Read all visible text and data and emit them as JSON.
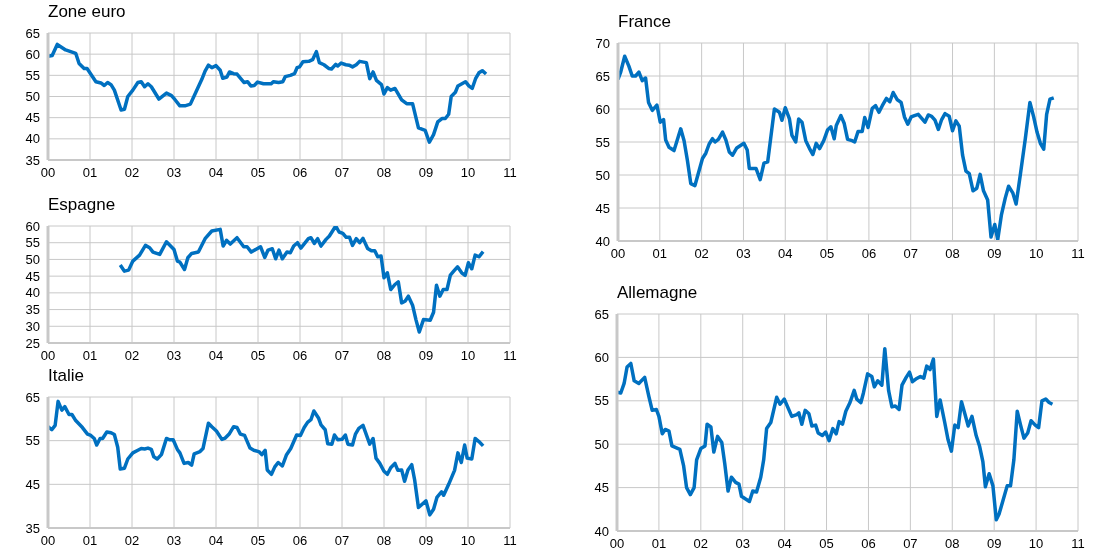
{
  "chart_data": [
    {
      "type": "line",
      "title": "Zone euro",
      "color": "#0070c0",
      "grid": true,
      "xlim": [
        2000,
        2011
      ],
      "ylim": [
        35,
        65
      ],
      "yticks": [
        35,
        40,
        45,
        50,
        55,
        60,
        65
      ],
      "xticks": [
        {
          "value": 2000,
          "label": "00"
        },
        {
          "value": 2001,
          "label": "01"
        },
        {
          "value": 2002,
          "label": "02"
        },
        {
          "value": 2003,
          "label": "03"
        },
        {
          "value": 2004,
          "label": "04"
        },
        {
          "value": 2005,
          "label": "05"
        },
        {
          "value": 2006,
          "label": "06"
        },
        {
          "value": 2007,
          "label": "07"
        },
        {
          "value": 2008,
          "label": "08"
        },
        {
          "value": 2009,
          "label": "09"
        },
        {
          "value": 2010,
          "label": "10"
        },
        {
          "value": 2011,
          "label": "11"
        }
      ],
      "x": [
        2000,
        2000.1,
        2000.22,
        2000.42,
        2000.54,
        2000.66,
        2000.74,
        2000.86,
        2000.93,
        2001.14,
        2001.26,
        2001.34,
        2001.42,
        2001.5,
        2001.58,
        2001.74,
        2001.82,
        2001.9,
        2002.02,
        2002.14,
        2002.22,
        2002.3,
        2002.38,
        2002.46,
        2002.64,
        2002.82,
        2002.94,
        2003.02,
        2003.14,
        2003.26,
        2003.39,
        2003.52,
        2003.66,
        2003.74,
        2003.82,
        2003.9,
        2004,
        2004.1,
        2004.16,
        2004.26,
        2004.32,
        2004.42,
        2004.5,
        2004.67,
        2004.75,
        2004.83,
        2004.91,
        2004.99,
        2005.13,
        2005.21,
        2005.31,
        2005.37,
        2005.49,
        2005.59,
        2005.65,
        2005.77,
        2005.87,
        2005.93,
        2005.99,
        2006.07,
        2006.21,
        2006.3,
        2006.39,
        2006.46,
        2006.57,
        2006.69,
        2006.75,
        2006.85,
        2006.9,
        2006.98,
        2007.09,
        2007.17,
        2007.25,
        2007.34,
        2007.42,
        2007.58,
        2007.66,
        2007.74,
        2007.82,
        2007.94,
        2008,
        2008.08,
        2008.16,
        2008.26,
        2008.42,
        2008.54,
        2008.68,
        2008.82,
        2008.98,
        2009.08,
        2009.18,
        2009.28,
        2009.38,
        2009.46,
        2009.54,
        2009.6,
        2009.7,
        2009.76,
        2009.94,
        2010.02,
        2010.1,
        2010.18,
        2010.26,
        2010.34,
        2010.43
      ],
      "values": [
        59.5,
        59.7,
        62.3,
        61,
        60.6,
        60.2,
        57.8,
        56.6,
        56.6,
        53.5,
        53.2,
        52.6,
        53.3,
        52.8,
        51.5,
        46.8,
        47,
        50,
        51.5,
        53.3,
        53.5,
        52.3,
        53,
        52.3,
        49.4,
        50.8,
        50.2,
        49.3,
        47.8,
        47.8,
        48.2,
        51,
        54,
        56,
        57.4,
        56.8,
        57.3,
        56.2,
        54.3,
        54.6,
        55.8,
        55.4,
        55.3,
        53.3,
        53.5,
        52.5,
        52.6,
        53.4,
        53,
        53,
        53,
        53.5,
        53.3,
        53.5,
        54.7,
        55,
        55.4,
        56.8,
        57,
        58.2,
        58.3,
        58.7,
        60.6,
        58,
        57.5,
        56.6,
        56.5,
        57.6,
        57.2,
        57.9,
        57.5,
        57.4,
        57,
        57.5,
        58.3,
        58,
        54.2,
        55.8,
        53.8,
        52.8,
        50.6,
        52.1,
        51.5,
        51.9,
        49.2,
        48.3,
        48.3,
        42.6,
        42,
        39.2,
        41,
        44,
        44.8,
        44.8,
        45.8,
        50,
        51,
        52.5,
        53.5,
        52.5,
        51.9,
        54.2,
        55.6,
        56.1,
        55.3
      ]
    },
    {
      "type": "line",
      "title": "France",
      "color": "#0070c0",
      "grid": true,
      "xlim": [
        2000,
        2011
      ],
      "ylim": [
        40,
        70
      ],
      "yticks": [
        40,
        45,
        50,
        55,
        60,
        65,
        70
      ],
      "xticks": [
        {
          "value": 2000,
          "label": "00"
        },
        {
          "value": 2001,
          "label": "01"
        },
        {
          "value": 2002,
          "label": "02"
        },
        {
          "value": 2003,
          "label": "03"
        },
        {
          "value": 2004,
          "label": "04"
        },
        {
          "value": 2005,
          "label": "05"
        },
        {
          "value": 2006,
          "label": "06"
        },
        {
          "value": 2007,
          "label": "07"
        },
        {
          "value": 2008,
          "label": "08"
        },
        {
          "value": 2009,
          "label": "09"
        },
        {
          "value": 2010,
          "label": "10"
        },
        {
          "value": 2011,
          "label": "11"
        }
      ],
      "x": [
        2000,
        2000.06,
        2000.16,
        2000.26,
        2000.34,
        2000.42,
        2000.5,
        2000.58,
        2000.66,
        2000.73,
        2000.82,
        2000.93,
        2001.01,
        2001.09,
        2001.14,
        2001.22,
        2001.34,
        2001.5,
        2001.58,
        2001.66,
        2001.74,
        2001.84,
        2002.02,
        2002.1,
        2002.18,
        2002.26,
        2002.32,
        2002.4,
        2002.5,
        2002.58,
        2002.66,
        2002.74,
        2002.84,
        2003.01,
        2003.09,
        2003.14,
        2003.3,
        2003.4,
        2003.49,
        2003.58,
        2003.74,
        2003.86,
        2003.92,
        2004,
        2004.1,
        2004.16,
        2004.25,
        2004.32,
        2004.4,
        2004.49,
        2004.58,
        2004.66,
        2004.74,
        2004.82,
        2004.92,
        2005.01,
        2005.09,
        2005.17,
        2005.22,
        2005.33,
        2005.41,
        2005.49,
        2005.6,
        2005.66,
        2005.74,
        2005.84,
        2005.9,
        2005.98,
        2006.08,
        2006.16,
        2006.24,
        2006.32,
        2006.42,
        2006.5,
        2006.58,
        2006.68,
        2006.77,
        2006.85,
        2006.93,
        2007.01,
        2007.09,
        2007.18,
        2007.34,
        2007.42,
        2007.5,
        2007.58,
        2007.66,
        2007.74,
        2007.82,
        2007.92,
        2008,
        2008.08,
        2008.16,
        2008.24,
        2008.32,
        2008.4,
        2008.49,
        2008.58,
        2008.66,
        2008.74,
        2008.84,
        2008.92,
        2009.01,
        2009.08,
        2009.17,
        2009.26,
        2009.34,
        2009.44,
        2009.52,
        2009.62,
        2009.74,
        2009.85,
        2009.94,
        2010.02,
        2010.1,
        2010.18,
        2010.25,
        2010.33,
        2010.42
      ],
      "values": [
        64.5,
        65.5,
        68,
        66.5,
        65,
        65,
        65.6,
        64.3,
        64.7,
        61,
        59.8,
        60.6,
        58,
        58.4,
        55.3,
        54.2,
        53.7,
        57,
        55.2,
        52.2,
        48.7,
        48.4,
        52.5,
        53.3,
        54.7,
        55.5,
        55,
        55.4,
        56.5,
        55.3,
        53.5,
        53,
        54.1,
        54.8,
        53.8,
        51,
        51,
        49.3,
        51.8,
        52,
        60,
        59.5,
        58.3,
        60.2,
        58.5,
        56,
        55,
        58.5,
        58,
        55.2,
        54,
        53.1,
        54.8,
        54,
        55.2,
        56.8,
        57.3,
        55.5,
        57.5,
        59,
        57.8,
        55.4,
        55.2,
        55,
        56.6,
        56.6,
        58.7,
        57.2,
        60.1,
        60.5,
        59.5,
        60.5,
        61.6,
        61.1,
        62.5,
        61.4,
        61,
        58.8,
        57.7,
        58.8,
        59,
        59.2,
        58,
        59.1,
        58.9,
        58.3,
        56.9,
        58.4,
        59.3,
        58.9,
        56.7,
        58.2,
        57.4,
        53,
        50.6,
        50.2,
        47.6,
        48,
        50.1,
        47.6,
        46.2,
        40.6,
        42.5,
        40.2,
        44,
        46.5,
        48.3,
        47.3,
        45.6,
        50,
        55.5,
        61,
        58.8,
        56.5,
        54.8,
        53.9,
        59.2,
        61.5,
        61.7
      ]
    },
    {
      "type": "line",
      "title": "Espagne",
      "color": "#0070c0",
      "grid": true,
      "xlim": [
        2000,
        2011
      ],
      "ylim": [
        25,
        60
      ],
      "yticks": [
        25,
        30,
        35,
        40,
        45,
        50,
        55,
        60
      ],
      "xticks": [
        {
          "value": 2000,
          "label": "00"
        },
        {
          "value": 2001,
          "label": "01"
        },
        {
          "value": 2002,
          "label": "02"
        },
        {
          "value": 2003,
          "label": "03"
        },
        {
          "value": 2004,
          "label": "04"
        },
        {
          "value": 2005,
          "label": "05"
        },
        {
          "value": 2006,
          "label": "06"
        },
        {
          "value": 2007,
          "label": "07"
        },
        {
          "value": 2008,
          "label": "08"
        },
        {
          "value": 2009,
          "label": "09"
        },
        {
          "value": 2010,
          "label": "10"
        },
        {
          "value": 2011,
          "label": "11"
        }
      ],
      "x": [
        2001.72,
        2001.82,
        2001.92,
        2002.02,
        2002.18,
        2002.32,
        2002.42,
        2002.5,
        2002.66,
        2002.82,
        2003,
        2003.08,
        2003.14,
        2003.25,
        2003.33,
        2003.42,
        2003.58,
        2003.74,
        2003.9,
        2004.1,
        2004.17,
        2004.25,
        2004.34,
        2004.5,
        2004.66,
        2004.74,
        2004.84,
        2005.06,
        2005.16,
        2005.24,
        2005.34,
        2005.42,
        2005.5,
        2005.58,
        2005.69,
        2005.77,
        2005.85,
        2005.94,
        2006.02,
        2006.2,
        2006.26,
        2006.34,
        2006.42,
        2006.5,
        2006.62,
        2006.7,
        2006.85,
        2006.93,
        2007.02,
        2007.1,
        2007.18,
        2007.25,
        2007.34,
        2007.42,
        2007.5,
        2007.61,
        2007.7,
        2007.78,
        2007.85,
        2007.93,
        2008,
        2008.08,
        2008.16,
        2008.26,
        2008.34,
        2008.42,
        2008.5,
        2008.58,
        2008.68,
        2008.76,
        2008.84,
        2008.94,
        2009.1,
        2009.18,
        2009.25,
        2009.33,
        2009.41,
        2009.5,
        2009.58,
        2009.66,
        2009.75,
        2009.85,
        2009.93,
        2010.01,
        2010.09,
        2010.17,
        2010.26,
        2010.36
      ],
      "values": [
        48.3,
        46.5,
        46.8,
        49.5,
        51.3,
        54.2,
        53.5,
        52.2,
        51.5,
        55.3,
        53,
        49.5,
        49.2,
        47,
        50.5,
        51.8,
        52.2,
        56.2,
        58.5,
        59,
        54,
        55.7,
        54.6,
        56.5,
        53.8,
        53.8,
        52.2,
        53.8,
        50.6,
        52.8,
        53.2,
        50.2,
        52.8,
        50.2,
        52.2,
        52,
        54,
        55,
        53.4,
        56.2,
        56.5,
        54.8,
        56.2,
        54,
        56,
        57,
        60,
        58.2,
        57.8,
        56.6,
        56.6,
        54.2,
        56.2,
        55,
        56.3,
        53.3,
        52.6,
        52.6,
        50.8,
        51,
        44.5,
        46,
        41,
        42.5,
        43.3,
        37,
        37.5,
        39,
        36.3,
        32,
        28.3,
        32,
        31.8,
        34.2,
        42.3,
        39,
        41,
        41,
        45.3,
        46.5,
        47.8,
        46,
        45.2,
        49,
        47.2,
        51.3,
        50.8,
        52.3
      ]
    },
    {
      "type": "line",
      "title": "Allemagne",
      "color": "#0070c0",
      "grid": true,
      "xlim": [
        2000,
        2011
      ],
      "ylim": [
        40,
        65
      ],
      "yticks": [
        40,
        45,
        50,
        55,
        60,
        65
      ],
      "xticks": [
        {
          "value": 2000,
          "label": "00"
        },
        {
          "value": 2001,
          "label": "01"
        },
        {
          "value": 2002,
          "label": "02"
        },
        {
          "value": 2003,
          "label": "03"
        },
        {
          "value": 2004,
          "label": "04"
        },
        {
          "value": 2005,
          "label": "05"
        },
        {
          "value": 2006,
          "label": "06"
        },
        {
          "value": 2007,
          "label": "07"
        },
        {
          "value": 2008,
          "label": "08"
        },
        {
          "value": 2009,
          "label": "09"
        },
        {
          "value": 2010,
          "label": "10"
        },
        {
          "value": 2011,
          "label": "11"
        }
      ],
      "x": [
        2000,
        2000.09,
        2000.17,
        2000.24,
        2000.33,
        2000.41,
        2000.52,
        2000.66,
        2000.76,
        2000.84,
        2000.94,
        2001,
        2001.08,
        2001.15,
        2001.24,
        2001.31,
        2001.5,
        2001.59,
        2001.66,
        2001.75,
        2001.84,
        2001.9,
        2002,
        2002.1,
        2002.15,
        2002.24,
        2002.31,
        2002.4,
        2002.5,
        2002.57,
        2002.65,
        2002.73,
        2002.83,
        2002.91,
        2002.97,
        2003.16,
        2003.24,
        2003.33,
        2003.43,
        2003.5,
        2003.57,
        2003.67,
        2003.81,
        2003.89,
        2003.99,
        2004.17,
        2004.29,
        2004.34,
        2004.41,
        2004.49,
        2004.58,
        2004.65,
        2004.74,
        2004.8,
        2004.9,
        2004.98,
        2005.06,
        2005.15,
        2005.23,
        2005.3,
        2005.38,
        2005.46,
        2005.56,
        2005.66,
        2005.72,
        2005.82,
        2005.88,
        2005.98,
        2006.08,
        2006.14,
        2006.22,
        2006.32,
        2006.39,
        2006.48,
        2006.56,
        2006.64,
        2006.73,
        2006.8,
        2006.9,
        2006.98,
        2007.05,
        2007.13,
        2007.24,
        2007.32,
        2007.39,
        2007.47,
        2007.55,
        2007.63,
        2007.71,
        2007.82,
        2007.9,
        2007.98,
        2008.06,
        2008.14,
        2008.22,
        2008.3,
        2008.38,
        2008.47,
        2008.57,
        2008.65,
        2008.73,
        2008.79,
        2008.88,
        2008.97,
        2009.05,
        2009.12,
        2009.31,
        2009.39,
        2009.47,
        2009.55,
        2009.63,
        2009.71,
        2009.8,
        2009.88,
        2009.98,
        2010.06,
        2010.14,
        2010.23,
        2010.31,
        2010.39
      ],
      "values": [
        56,
        55.9,
        57,
        58.9,
        59.3,
        57.3,
        57,
        57.7,
        55.5,
        53.9,
        54,
        53.2,
        51.2,
        51.7,
        51.5,
        49.8,
        49.4,
        47.5,
        45,
        44.2,
        45,
        48.2,
        49.5,
        49.8,
        52.3,
        52,
        49.1,
        50.9,
        50.2,
        47.8,
        44.6,
        46.2,
        45.6,
        45.4,
        44,
        43.4,
        44.6,
        44.5,
        46.2,
        48.2,
        51.8,
        52.5,
        55.4,
        54.6,
        55.2,
        53.2,
        53.4,
        53.6,
        52.3,
        53.9,
        53.5,
        52.1,
        52.2,
        51.3,
        51,
        51.4,
        50.4,
        51.8,
        51.2,
        52.6,
        52.3,
        53.8,
        54.8,
        56.2,
        55.2,
        54.8,
        55.9,
        58.1,
        57.8,
        56.6,
        57.3,
        56.8,
        61,
        56.2,
        54.3,
        54.4,
        54,
        56.8,
        57.7,
        58.3,
        57.2,
        57.5,
        57.8,
        57.6,
        59,
        58.6,
        59.8,
        53.2,
        55.1,
        52.5,
        50.5,
        49.2,
        52.2,
        51.9,
        54.9,
        53.5,
        52.1,
        53.2,
        51,
        49.8,
        48,
        45.1,
        46.6,
        45.2,
        41.3,
        42,
        45.2,
        45.2,
        48.2,
        53.8,
        52.2,
        50.7,
        51.3,
        52.7,
        52.2,
        51.9,
        55,
        55.2,
        54.8,
        54.6
      ]
    },
    {
      "type": "line",
      "title": "Italie",
      "color": "#0070c0",
      "grid": true,
      "xlim": [
        2000,
        2011
      ],
      "ylim": [
        35,
        65
      ],
      "yticks": [
        35,
        45,
        55,
        65
      ],
      "xticks": [
        {
          "value": 2000,
          "label": "00"
        },
        {
          "value": 2001,
          "label": "01"
        },
        {
          "value": 2002,
          "label": "02"
        },
        {
          "value": 2003,
          "label": "03"
        },
        {
          "value": 2004,
          "label": "04"
        },
        {
          "value": 2005,
          "label": "05"
        },
        {
          "value": 2006,
          "label": "06"
        },
        {
          "value": 2007,
          "label": "07"
        },
        {
          "value": 2008,
          "label": "08"
        },
        {
          "value": 2009,
          "label": "09"
        },
        {
          "value": 2010,
          "label": "10"
        },
        {
          "value": 2011,
          "label": "11"
        }
      ],
      "x": [
        2000,
        2000.09,
        2000.17,
        2000.24,
        2000.33,
        2000.4,
        2000.5,
        2000.57,
        2000.66,
        2000.82,
        2000.94,
        2001.02,
        2001.1,
        2001.16,
        2001.24,
        2001.3,
        2001.4,
        2001.5,
        2001.58,
        2001.66,
        2001.72,
        2001.82,
        2001.9,
        2002.02,
        2002.14,
        2002.22,
        2002.3,
        2002.38,
        2002.46,
        2002.52,
        2002.6,
        2002.7,
        2002.82,
        2002.9,
        2002.98,
        2003.08,
        2003.14,
        2003.24,
        2003.34,
        2003.42,
        2003.48,
        2003.62,
        2003.69,
        2003.82,
        2003.9,
        2004.01,
        2004.14,
        2004.22,
        2004.32,
        2004.42,
        2004.5,
        2004.58,
        2004.68,
        2004.81,
        2004.9,
        2005.02,
        2005.09,
        2005.17,
        2005.22,
        2005.32,
        2005.4,
        2005.48,
        2005.58,
        2005.68,
        2005.78,
        2005.92,
        2006.01,
        2006.1,
        2006.18,
        2006.26,
        2006.33,
        2006.44,
        2006.5,
        2006.6,
        2006.66,
        2006.76,
        2006.82,
        2006.9,
        2007,
        2007.08,
        2007.14,
        2007.25,
        2007.32,
        2007.4,
        2007.5,
        2007.66,
        2007.74,
        2007.81,
        2007.9,
        2008,
        2008.08,
        2008.16,
        2008.26,
        2008.33,
        2008.42,
        2008.49,
        2008.57,
        2008.66,
        2008.73,
        2008.82,
        2009,
        2009.09,
        2009.18,
        2009.26,
        2009.37,
        2009.42,
        2009.54,
        2009.68,
        2009.76,
        2009.84,
        2009.92,
        2009.98,
        2010.09,
        2010.17,
        2010.26,
        2010.36
      ],
      "values": [
        58.2,
        57.5,
        58.5,
        64,
        62,
        62.8,
        61,
        61,
        59.6,
        58,
        56.5,
        56.2,
        55.5,
        54,
        55.5,
        55.5,
        57,
        56.8,
        56.4,
        53.5,
        48.5,
        48.7,
        50.8,
        52.2,
        52.8,
        53.2,
        53.1,
        53.3,
        53,
        51.3,
        50.8,
        51.8,
        55.5,
        55.2,
        55.2,
        53,
        52.2,
        49.8,
        50,
        49.4,
        52,
        52.5,
        53.2,
        59,
        58.2,
        57.2,
        55.3,
        55.6,
        56.6,
        58.2,
        58,
        56.5,
        56.2,
        53.3,
        52.8,
        52.5,
        51.8,
        52.8,
        48.3,
        47.3,
        49,
        50,
        49.2,
        51.8,
        53.2,
        56.3,
        56.2,
        58,
        59.2,
        59.8,
        61.8,
        60.2,
        58.6,
        57.5,
        54.3,
        54.2,
        56.3,
        55.2,
        55.3,
        56.3,
        54.2,
        54,
        56.5,
        57.8,
        58.5,
        54.2,
        55.5,
        51,
        49.8,
        48,
        47.3,
        48.8,
        49.8,
        48.2,
        48.3,
        45.7,
        48.3,
        49.5,
        46,
        39.7,
        41.2,
        38,
        39.3,
        42,
        43.3,
        42.5,
        45,
        48.2,
        52.2,
        50,
        54,
        51,
        50.8,
        55.5,
        54.8,
        53.8
      ]
    }
  ]
}
